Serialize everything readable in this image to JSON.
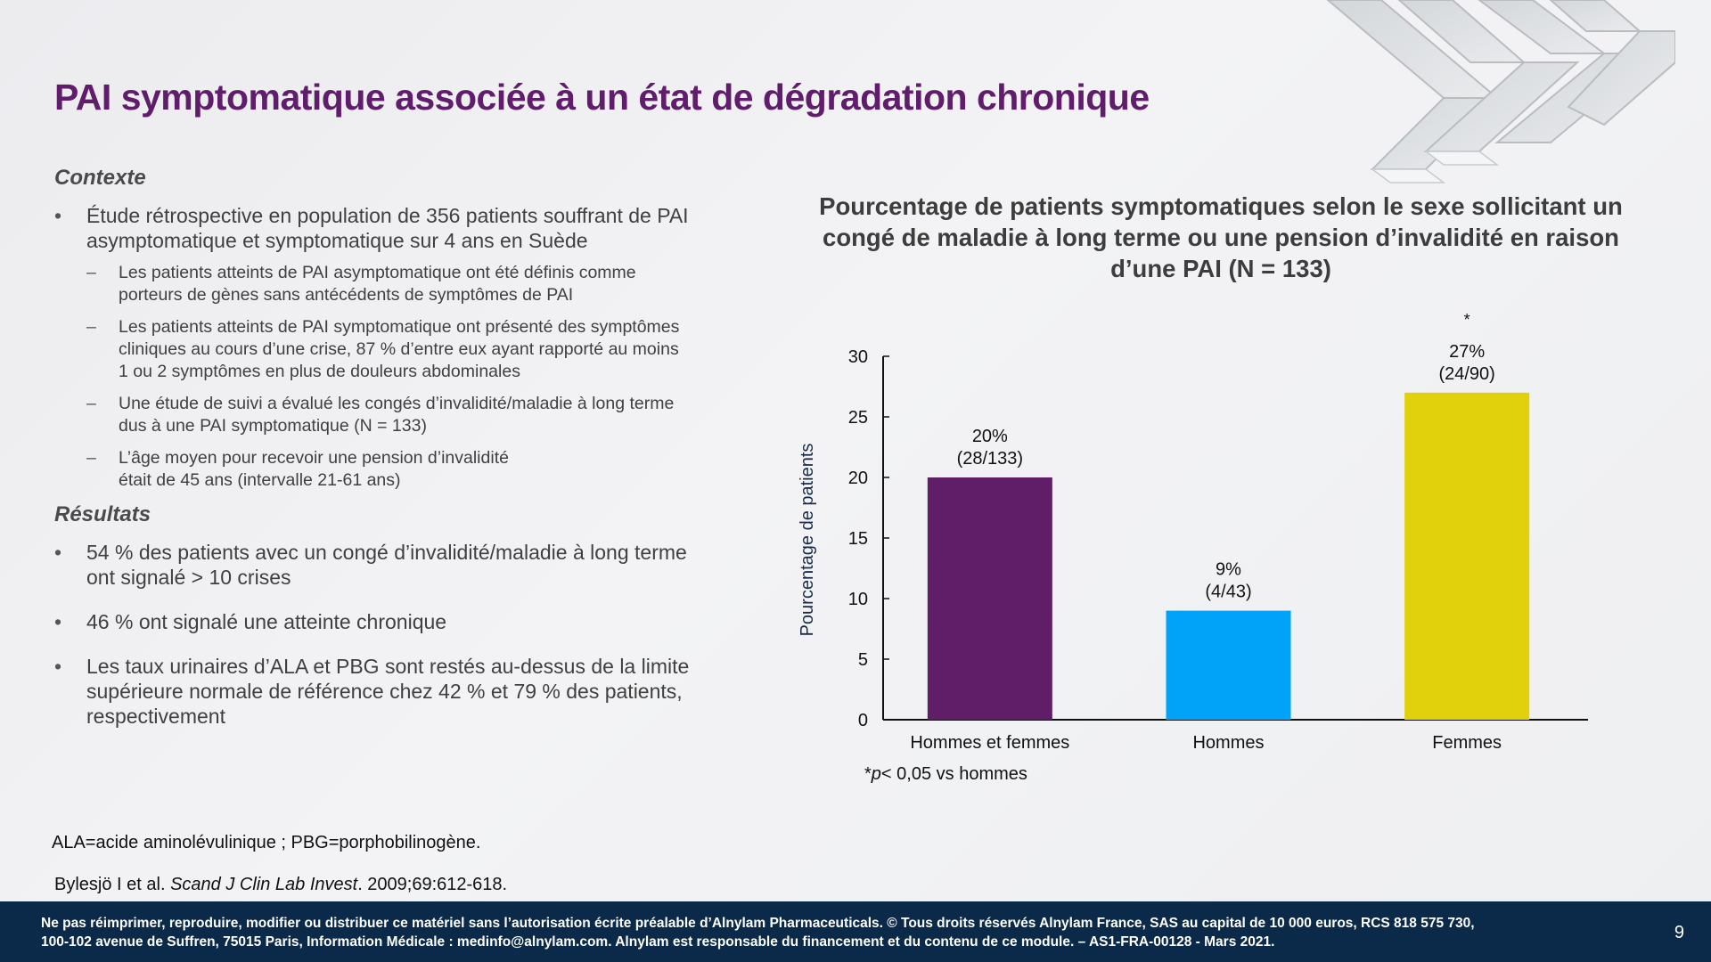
{
  "title": "PAI symptomatique associée à un état de dégradation chronique",
  "context": {
    "heading": "Contexte",
    "bullet1_line1": "Étude rétrospective en population de 356 patients souffrant de PAI",
    "bullet1_line2": "asymptomatique et symptomatique sur 4 ans en Suède",
    "sub": [
      [
        "Les patients atteints de PAI asymptomatique ont été définis comme",
        "porteurs de gènes sans antécédents de symptômes de PAI"
      ],
      [
        "Les patients atteints de PAI symptomatique ont présenté des symptômes",
        "cliniques au cours d’une crise, 87 % d’entre eux ayant rapporté au moins",
        "1 ou 2 symptômes en plus de douleurs abdominales"
      ],
      [
        "Une étude de suivi a évalué les congés d’invalidité/maladie à long terme",
        "dus à une PAI symptomatique (N = 133)"
      ],
      [
        "L’âge moyen pour recevoir une pension d’invalidité",
        "était de 45 ans (intervalle 21-61 ans)"
      ]
    ]
  },
  "results": {
    "heading": "Résultats",
    "bullets": [
      [
        "54 % des patients avec un congé d’invalidité/maladie à long terme",
        "ont signalé > 10 crises"
      ],
      [
        "46 % ont signalé une atteinte chronique"
      ],
      [
        "Les taux urinaires d’ALA et PBG sont restés au-dessus de la limite",
        "supérieure normale de référence chez 42 % et 79 % des patients,",
        "respectivement"
      ]
    ]
  },
  "footnotes": {
    "abbrev": "ALA=acide aminolévulinique ; PBG=porphobilinogène.",
    "ref_authors": "Bylesjö I et al. ",
    "ref_journal": "Scand  J Clin Lab Invest",
    "ref_rest": ". 2009;69:612-618."
  },
  "chart_data": {
    "type": "bar",
    "title_lines": [
      "Pourcentage de patients symptomatiques selon le sexe sollicitant un",
      "congé de maladie à long terme ou une pension d’invalidité en raison",
      "d’une PAI (N = 133)"
    ],
    "categories": [
      "Hommes et femmes",
      "Hommes",
      "Femmes"
    ],
    "values": [
      20,
      9,
      27
    ],
    "labels_pct": [
      "20%",
      "9%",
      "27%"
    ],
    "labels_n": [
      "(28/133)",
      "(4/43)",
      "(24/90)"
    ],
    "colors": [
      "#601e68",
      "#00a3f7",
      "#e1d10c"
    ],
    "significance": [
      "",
      "",
      "*"
    ],
    "ylabel": "Pourcentage de patients",
    "ylim": [
      0,
      30
    ],
    "yticks": [
      0,
      5,
      10,
      15,
      20,
      25,
      30
    ],
    "note_prefix": "*",
    "note_italic": "p",
    "note_rest": "< 0,05 vs hommes"
  },
  "footer": {
    "line1": "Ne pas réimprimer, reproduire, modifier ou distribuer ce matériel sans l’autorisation écrite préalable d’Alnylam Pharmaceuticals. © Tous droits réservés Alnylam France, SAS au capital de 10 000 euros, RCS 818 575 730,",
    "line2": "100-102 avenue de Suffren, 75015 Paris, Information Médicale : medinfo@alnylam.com. Alnylam est responsable du financement et du contenu de ce module. – AS1-FRA-00128 - Mars 2021.",
    "page": "9"
  }
}
